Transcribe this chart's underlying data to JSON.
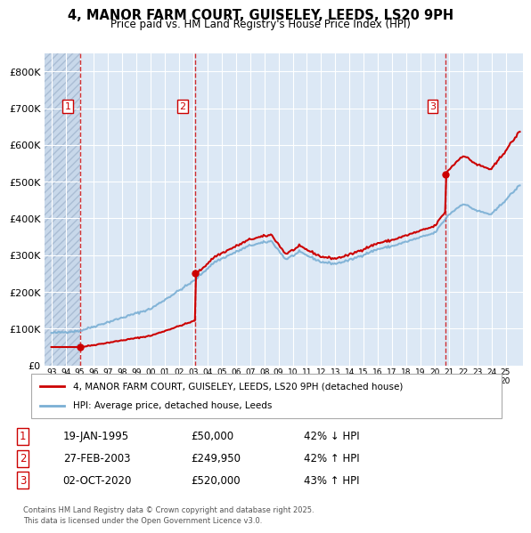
{
  "title_line1": "4, MANOR FARM COURT, GUISELEY, LEEDS, LS20 9PH",
  "title_line2": "Price paid vs. HM Land Registry's House Price Index (HPI)",
  "plot_bg_color": "#dce8f5",
  "hatch_bg_color": "#c8d8ea",
  "grid_color": "#ffffff",
  "red_line_color": "#cc0000",
  "blue_line_color": "#7aafd4",
  "transactions": [
    {
      "label": "1",
      "date_num": 1995.05,
      "price": 50000
    },
    {
      "label": "2",
      "date_num": 2003.15,
      "price": 249950
    },
    {
      "label": "3",
      "date_num": 2020.75,
      "price": 520000
    }
  ],
  "ylim": [
    0,
    850000
  ],
  "xlim": [
    1992.5,
    2026.2
  ],
  "yticks": [
    0,
    100000,
    200000,
    300000,
    400000,
    500000,
    600000,
    700000,
    800000
  ],
  "ytick_labels": [
    "£0",
    "£100K",
    "£200K",
    "£300K",
    "£400K",
    "£500K",
    "£600K",
    "£700K",
    "£800K"
  ],
  "xtick_years": [
    1993,
    1994,
    1995,
    1996,
    1997,
    1998,
    1999,
    2000,
    2001,
    2002,
    2003,
    2004,
    2005,
    2006,
    2007,
    2008,
    2009,
    2010,
    2011,
    2012,
    2013,
    2014,
    2015,
    2016,
    2017,
    2018,
    2019,
    2020,
    2021,
    2022,
    2023,
    2024,
    2025
  ],
  "legend_label_red": "4, MANOR FARM COURT, GUISELEY, LEEDS, LS20 9PH (detached house)",
  "legend_label_blue": "HPI: Average price, detached house, Leeds",
  "trans_info": [
    {
      "label": "1",
      "date_str": "19-JAN-1995",
      "price_str": "£50,000",
      "hpi_str": "42% ↓ HPI"
    },
    {
      "label": "2",
      "date_str": "27-FEB-2003",
      "price_str": "£249,950",
      "hpi_str": "42% ↑ HPI"
    },
    {
      "label": "3",
      "date_str": "02-OCT-2020",
      "price_str": "£520,000",
      "hpi_str": "43% ↑ HPI"
    }
  ],
  "footer": "Contains HM Land Registry data © Crown copyright and database right 2025.\nThis data is licensed under the Open Government Licence v3.0."
}
